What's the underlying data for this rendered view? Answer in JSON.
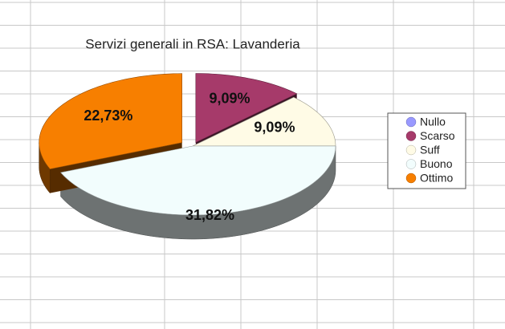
{
  "chart_data": {
    "type": "pie3d",
    "title": "Servizi generali in RSA: Lavanderia",
    "categories": [
      "Nullo",
      "Scarso",
      "Suff",
      "Buono",
      "Ottimo"
    ],
    "values": [
      0,
      9.09,
      9.09,
      31.82,
      22.73
    ],
    "value_labels": [
      null,
      "9,09%",
      "9,09%",
      "31,82%",
      "22,73%"
    ],
    "colors": [
      "#9999ff",
      "#a63a6a",
      "#fffbe6",
      "#f2fdfd",
      "#f77f00"
    ],
    "legend": "right"
  }
}
